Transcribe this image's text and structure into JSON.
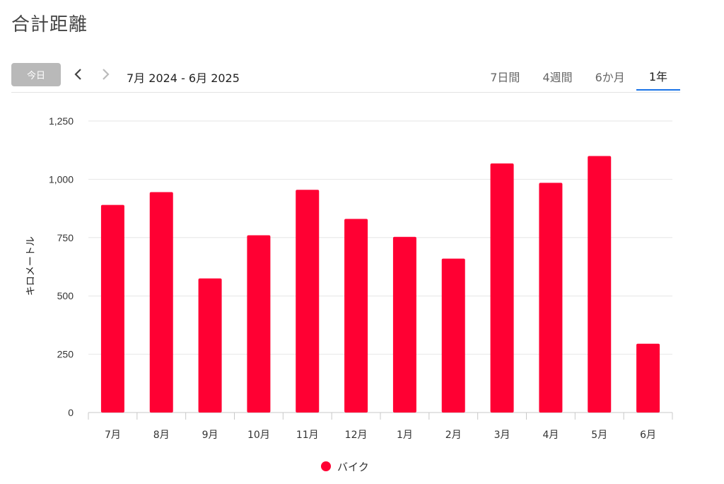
{
  "page": {
    "title": "合計距離"
  },
  "toolbar": {
    "today_label": "今日",
    "prev_icon": "chevron-left-icon",
    "next_icon": "chevron-right-icon",
    "range_label": "7月 2024 - 6月 2025",
    "tabs": [
      {
        "label": "7日間",
        "active": false
      },
      {
        "label": "4週間",
        "active": false
      },
      {
        "label": "6か月",
        "active": false
      },
      {
        "label": "1年",
        "active": true
      }
    ],
    "active_tab_color": "#1a73e8"
  },
  "chart_data": {
    "type": "bar",
    "categories": [
      "7月",
      "8月",
      "9月",
      "10月",
      "11月",
      "12月",
      "1月",
      "2月",
      "3月",
      "4月",
      "5月",
      "6月"
    ],
    "series": [
      {
        "name": "バイク",
        "color": "#ff0033",
        "values": [
          890,
          945,
          575,
          760,
          955,
          830,
          753,
          660,
          1068,
          985,
          1100,
          295
        ]
      }
    ],
    "ylabel": "キロメートル",
    "ylim": [
      0,
      1250
    ],
    "yticks": [
      0,
      250,
      500,
      750,
      1000,
      1250
    ],
    "ytick_labels": [
      "0",
      "250",
      "500",
      "750",
      "1,000",
      "1,250"
    ],
    "grid": true,
    "legend": "bottom"
  }
}
